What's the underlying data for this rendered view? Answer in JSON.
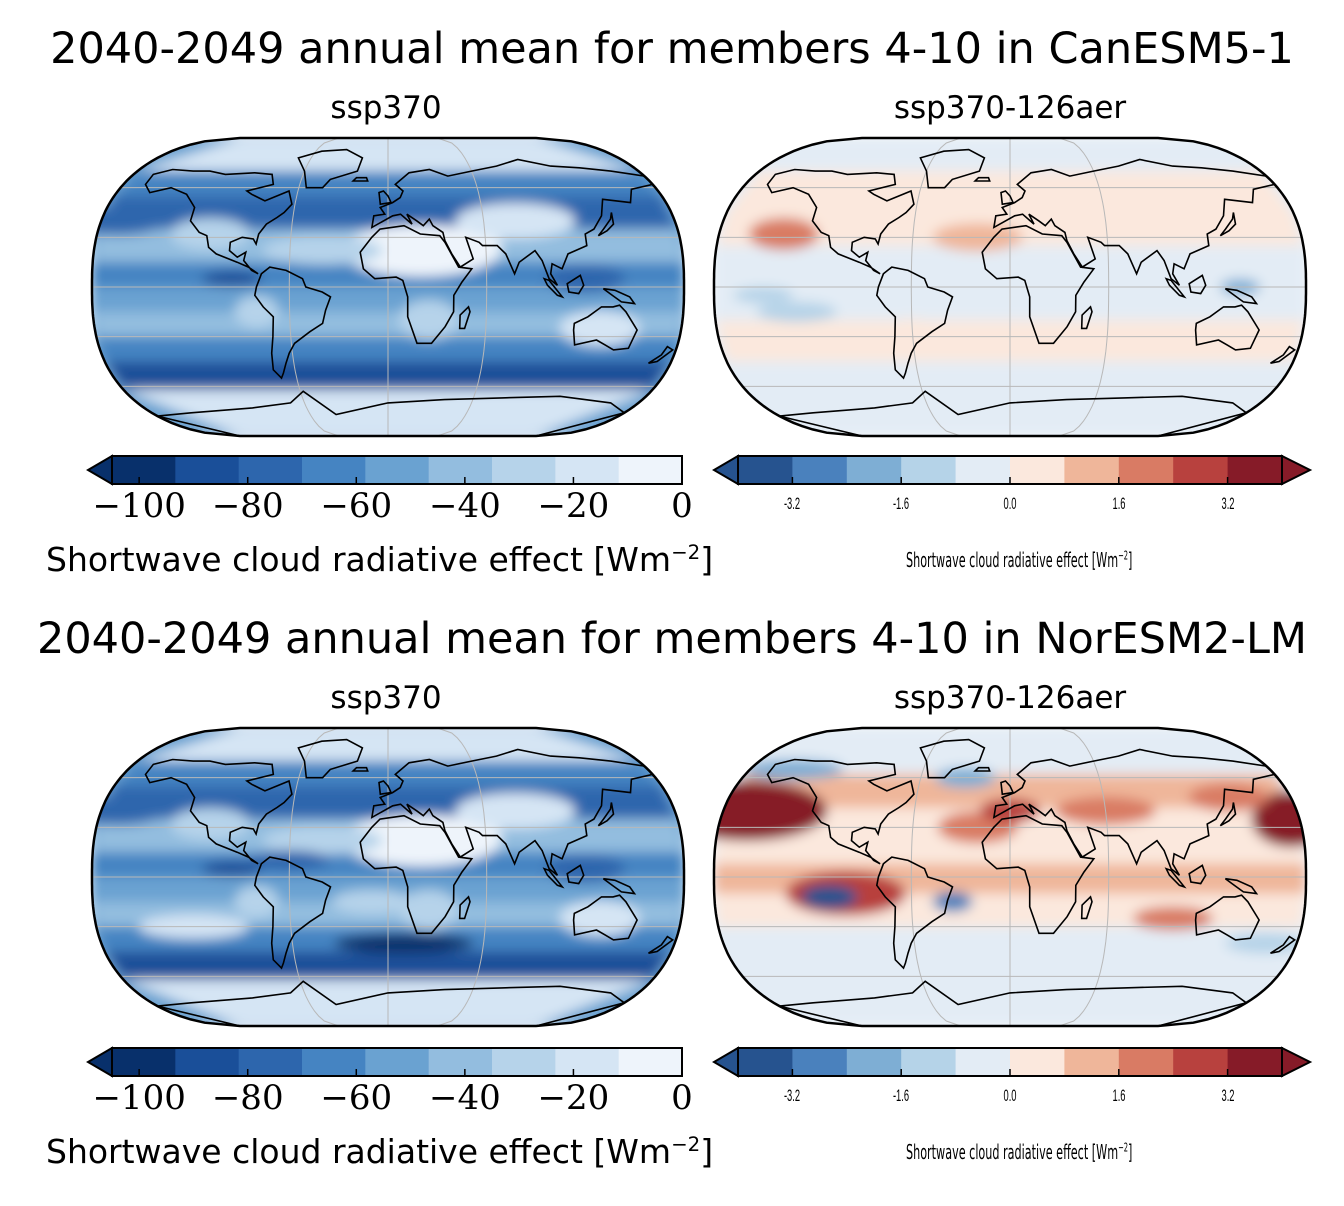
{
  "panels": [
    {
      "title": "2040-2049 annual mean for members 4-10 in CanESM5-1",
      "left": {
        "subtitle": "ssp370",
        "colorbar": {
          "label": "Shortwave cloud radiative effect [Wm",
          "label_sup": "−2",
          "label_end": "]",
          "ticks": [
            "−100",
            "−80",
            "−60",
            "−40",
            "−20",
            "0"
          ],
          "tick_values": [
            -100,
            -80,
            -60,
            -40,
            -20,
            0
          ],
          "range": [
            -105,
            0
          ],
          "extend": "min",
          "colormap": "Blues_r"
        }
      },
      "right": {
        "subtitle": "ssp370-126aer",
        "colorbar": {
          "label": "Shortwave cloud radiative effect [Wm",
          "label_sup": "−2",
          "label_end": "]",
          "ticks": [
            "-3.2",
            "-1.6",
            "0.0",
            "1.6",
            "3.2"
          ],
          "tick_values": [
            -3.2,
            -1.6,
            0.0,
            1.6,
            3.2
          ],
          "range": [
            -4.0,
            4.0
          ],
          "extend": "both",
          "colormap": "RdBu_r"
        }
      }
    },
    {
      "title": "2040-2049 annual mean for members 4-10 in NorESM2-LM",
      "left": {
        "subtitle": "ssp370",
        "colorbar": {
          "label": "Shortwave cloud radiative effect [Wm",
          "label_sup": "−2",
          "label_end": "]",
          "ticks": [
            "−100",
            "−80",
            "−60",
            "−40",
            "−20",
            "0"
          ],
          "tick_values": [
            -100,
            -80,
            -60,
            -40,
            -20,
            0
          ],
          "range": [
            -105,
            0
          ],
          "extend": "min",
          "colormap": "Blues_r"
        }
      },
      "right": {
        "subtitle": "ssp370-126aer",
        "colorbar": {
          "label": "Shortwave cloud radiative effect [Wm",
          "label_sup": "−2",
          "label_end": "]",
          "ticks": [
            "-3.2",
            "-1.6",
            "0.0",
            "1.6",
            "3.2"
          ],
          "tick_values": [
            -3.2,
            -1.6,
            0.0,
            1.6,
            3.2
          ],
          "range": [
            -4.0,
            4.0
          ],
          "extend": "both",
          "colormap": "RdBu_r"
        }
      }
    }
  ],
  "chart_data": [
    {
      "type": "heatmap",
      "title": "2040-2049 annual mean for members 4-10 in CanESM5-1",
      "subtitle": "ssp370",
      "projection": "Robinson",
      "colorbar_label": "Shortwave cloud radiative effect [Wm−2]",
      "vmin": -100,
      "vmax": 0
    },
    {
      "type": "heatmap",
      "title": "2040-2049 annual mean for members 4-10 in CanESM5-1",
      "subtitle": "ssp370-126aer",
      "projection": "Robinson",
      "colorbar_label": "Shortwave cloud radiative effect [Wm−2]",
      "vmin": -4.0,
      "vmax": 4.0
    },
    {
      "type": "heatmap",
      "title": "2040-2049 annual mean for members 4-10 in NorESM2-LM",
      "subtitle": "ssp370",
      "projection": "Robinson",
      "colorbar_label": "Shortwave cloud radiative effect [Wm−2]",
      "vmin": -100,
      "vmax": 0
    },
    {
      "type": "heatmap",
      "title": "2040-2049 annual mean for members 4-10 in NorESM2-LM",
      "subtitle": "ssp370-126aer",
      "projection": "Robinson",
      "colorbar_label": "Shortwave cloud radiative effect [Wm−2]",
      "vmin": -4.0,
      "vmax": 4.0
    }
  ],
  "colors": {
    "blues": [
      "#08306b",
      "#1a4f99",
      "#2d66ad",
      "#4584c2",
      "#6aa2d1",
      "#93bddf",
      "#b6d3ea",
      "#d5e5f4",
      "#eef4fb"
    ],
    "rdbu": [
      "#26538f",
      "#4a81bd",
      "#7eaed4",
      "#b5d3e8",
      "#e3ecf5",
      "#fbe8dd",
      "#efb69a",
      "#d97b64",
      "#b8413e",
      "#861b28"
    ]
  }
}
